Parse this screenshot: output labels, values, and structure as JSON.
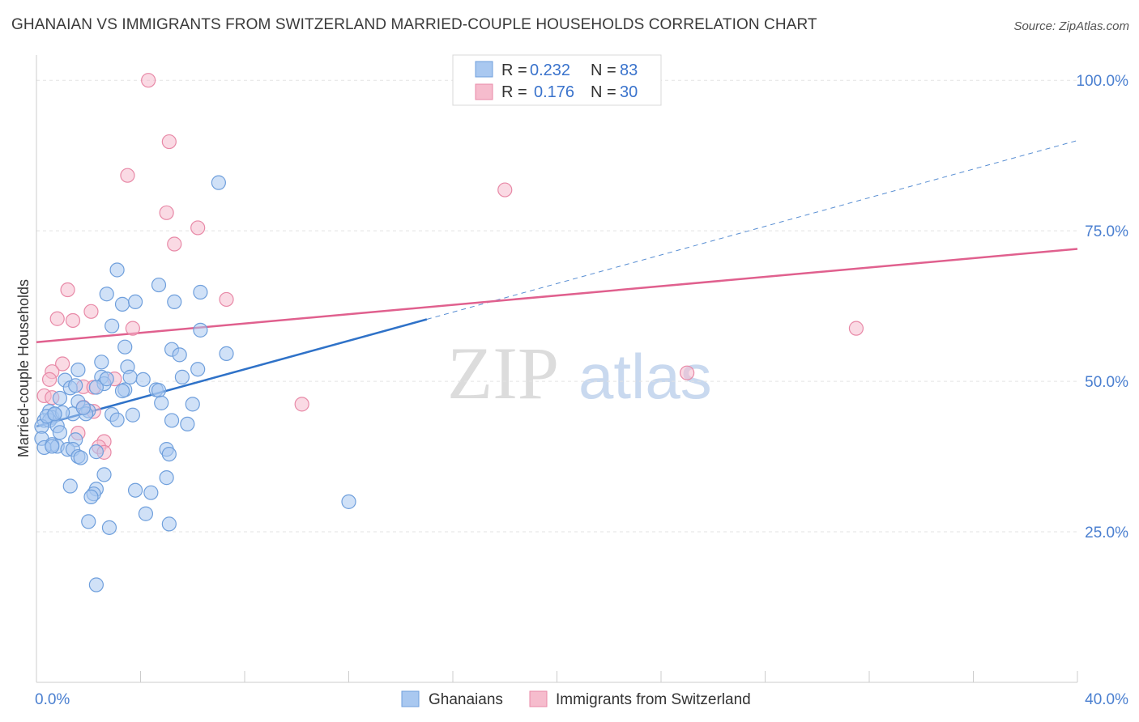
{
  "title": "GHANAIAN VS IMMIGRANTS FROM SWITZERLAND MARRIED-COUPLE HOUSEHOLDS CORRELATION CHART",
  "source": "Source: ZipAtlas.com",
  "watermark_zip": "ZIP",
  "watermark_atlas": "atlas",
  "colors": {
    "blue_fill": "#a9c8f0",
    "blue_stroke": "#6f9fdc",
    "blue_line": "#2f72c8",
    "pink_fill": "#f6bccd",
    "pink_stroke": "#e889a7",
    "pink_line": "#e0608e",
    "tick_text": "#4a7fd0"
  },
  "legend": {
    "r_label": "R =",
    "n_label": "N =",
    "entries": [
      {
        "r": "0.232",
        "n": "83"
      },
      {
        "r": "0.176",
        "n": "30"
      }
    ]
  },
  "bottom_legend": [
    "Ghanaians",
    "Immigrants from Switzerland"
  ],
  "chart_data": {
    "type": "scatter",
    "title": "GHANAIAN VS IMMIGRANTS FROM SWITZERLAND MARRIED-COUPLE HOUSEHOLDS CORRELATION CHART",
    "xlabel": "",
    "ylabel": "Married-couple Households",
    "xlim": [
      0,
      40
    ],
    "ylim": [
      0,
      105
    ],
    "x_tick_labels": [
      "0.0%",
      "40.0%"
    ],
    "y_ticks": [
      25,
      50,
      75,
      100
    ],
    "y_tick_labels": [
      "25.0%",
      "50.0%",
      "75.0%",
      "100.0%"
    ],
    "grid": true,
    "series": [
      {
        "name": "Ghanaians",
        "r": 0.232,
        "n": 83,
        "trend": {
          "x0": 0,
          "y0": 42.5,
          "x1": 15,
          "y1": 60.3,
          "dashed_to_x": 40,
          "dashed_to_y": 90.0
        },
        "points": [
          [
            7.0,
            83.0
          ],
          [
            3.1,
            68.5
          ],
          [
            4.7,
            66.0
          ],
          [
            2.7,
            64.5
          ],
          [
            6.3,
            64.8
          ],
          [
            3.3,
            62.8
          ],
          [
            3.8,
            63.2
          ],
          [
            5.3,
            63.2
          ],
          [
            2.9,
            59.2
          ],
          [
            6.3,
            58.5
          ],
          [
            3.4,
            55.7
          ],
          [
            5.2,
            55.3
          ],
          [
            5.5,
            54.4
          ],
          [
            7.3,
            54.6
          ],
          [
            2.5,
            53.2
          ],
          [
            3.5,
            52.4
          ],
          [
            1.6,
            51.9
          ],
          [
            6.2,
            52.0
          ],
          [
            2.5,
            50.7
          ],
          [
            3.6,
            50.7
          ],
          [
            4.1,
            50.3
          ],
          [
            5.6,
            50.7
          ],
          [
            1.1,
            50.2
          ],
          [
            2.6,
            49.6
          ],
          [
            2.3,
            49.0
          ],
          [
            1.3,
            48.9
          ],
          [
            3.4,
            48.6
          ],
          [
            4.6,
            48.6
          ],
          [
            4.7,
            48.5
          ],
          [
            1.5,
            49.3
          ],
          [
            0.9,
            47.2
          ],
          [
            1.6,
            46.6
          ],
          [
            4.8,
            46.4
          ],
          [
            6.0,
            46.2
          ],
          [
            2.0,
            45.1
          ],
          [
            0.5,
            45.0
          ],
          [
            0.7,
            44.5
          ],
          [
            1.4,
            44.6
          ],
          [
            2.9,
            44.5
          ],
          [
            3.7,
            44.4
          ],
          [
            1.9,
            44.6
          ],
          [
            0.6,
            44.0
          ],
          [
            0.3,
            43.5
          ],
          [
            0.5,
            43.5
          ],
          [
            3.1,
            43.6
          ],
          [
            5.2,
            43.5
          ],
          [
            5.8,
            42.9
          ],
          [
            0.2,
            42.5
          ],
          [
            0.8,
            42.6
          ],
          [
            0.9,
            41.5
          ],
          [
            0.2,
            40.5
          ],
          [
            1.5,
            40.3
          ],
          [
            0.6,
            39.5
          ],
          [
            0.3,
            39.0
          ],
          [
            0.8,
            39.2
          ],
          [
            1.2,
            38.7
          ],
          [
            1.4,
            38.7
          ],
          [
            2.3,
            38.3
          ],
          [
            5.0,
            38.7
          ],
          [
            5.1,
            37.9
          ],
          [
            1.6,
            37.5
          ],
          [
            1.7,
            37.3
          ],
          [
            2.6,
            34.5
          ],
          [
            5.0,
            34.0
          ],
          [
            1.3,
            32.6
          ],
          [
            2.3,
            32.1
          ],
          [
            3.8,
            31.9
          ],
          [
            4.4,
            31.5
          ],
          [
            2.2,
            31.3
          ],
          [
            2.1,
            30.8
          ],
          [
            12.0,
            30.0
          ],
          [
            4.2,
            28.0
          ],
          [
            2.0,
            26.7
          ],
          [
            5.1,
            26.3
          ],
          [
            2.8,
            25.7
          ],
          [
            2.3,
            16.2
          ],
          [
            0.6,
            39.2
          ],
          [
            1.0,
            44.8
          ],
          [
            2.7,
            50.4
          ],
          [
            0.4,
            44.2
          ],
          [
            3.3,
            48.4
          ],
          [
            0.7,
            44.6
          ],
          [
            1.8,
            45.6
          ]
        ]
      },
      {
        "name": "Immigrants from Switzerland",
        "r": 0.176,
        "n": 30,
        "trend": {
          "x0": 0,
          "y0": 56.5,
          "x1": 40,
          "y1": 72.0
        },
        "points": [
          [
            4.3,
            100.0
          ],
          [
            5.1,
            89.8
          ],
          [
            3.5,
            84.2
          ],
          [
            18.0,
            81.8
          ],
          [
            5.0,
            78.0
          ],
          [
            6.2,
            75.5
          ],
          [
            5.3,
            72.8
          ],
          [
            1.2,
            65.2
          ],
          [
            7.3,
            63.6
          ],
          [
            2.1,
            61.6
          ],
          [
            0.8,
            60.4
          ],
          [
            1.4,
            60.1
          ],
          [
            3.7,
            58.8
          ],
          [
            31.5,
            58.8
          ],
          [
            25.0,
            51.4
          ],
          [
            1.0,
            52.9
          ],
          [
            0.6,
            51.6
          ],
          [
            0.5,
            50.3
          ],
          [
            3.0,
            50.4
          ],
          [
            1.8,
            49.1
          ],
          [
            2.2,
            49.0
          ],
          [
            0.3,
            47.6
          ],
          [
            10.2,
            46.2
          ],
          [
            1.8,
            45.7
          ],
          [
            2.2,
            45.0
          ],
          [
            1.6,
            41.4
          ],
          [
            2.6,
            40.0
          ],
          [
            2.4,
            39.1
          ],
          [
            2.6,
            38.2
          ],
          [
            0.6,
            47.3
          ]
        ]
      }
    ]
  }
}
